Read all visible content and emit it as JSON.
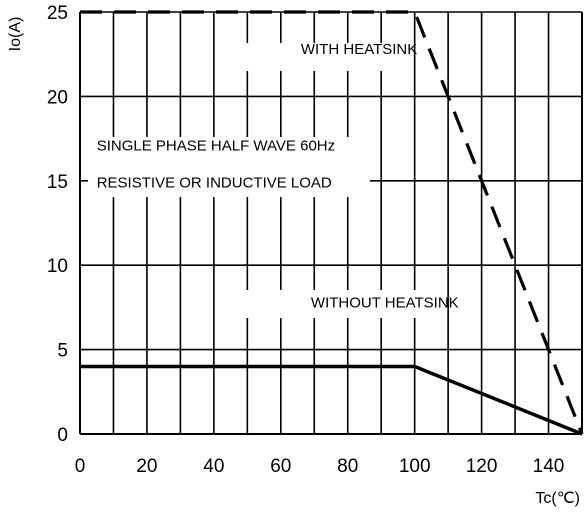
{
  "chart_data": {
    "type": "line",
    "title": "",
    "xlabel": "Tc(℃)",
    "ylabel": "Io(A)",
    "xlim": [
      0,
      150
    ],
    "ylim": [
      0,
      25
    ],
    "x_ticks": [
      "0",
      "20",
      "40",
      "60",
      "80",
      "100",
      "120",
      "140"
    ],
    "y_ticks": [
      "0",
      "5",
      "10",
      "15",
      "20",
      "25"
    ],
    "grid": true,
    "series": [
      {
        "name": "WITH HEATSINK",
        "style": "dashed",
        "x": [
          0,
          100,
          150
        ],
        "y": [
          25,
          25,
          0
        ]
      },
      {
        "name": "WITHOUT HEATSINK",
        "style": "solid",
        "x": [
          0,
          100,
          150
        ],
        "y": [
          4,
          4,
          0
        ]
      }
    ],
    "annotations": [
      {
        "text": "WITH HEATSINK",
        "x": 66,
        "y": 22.5
      },
      {
        "text": "SINGLE PHASE HALF WAVE  60Hz",
        "x": 5,
        "y": 16.8
      },
      {
        "text": "RESISTIVE OR INDUCTIVE LOAD",
        "x": 5,
        "y": 14.6
      },
      {
        "text": "WITHOUT HEATSINK",
        "x": 69,
        "y": 7.5
      }
    ]
  }
}
